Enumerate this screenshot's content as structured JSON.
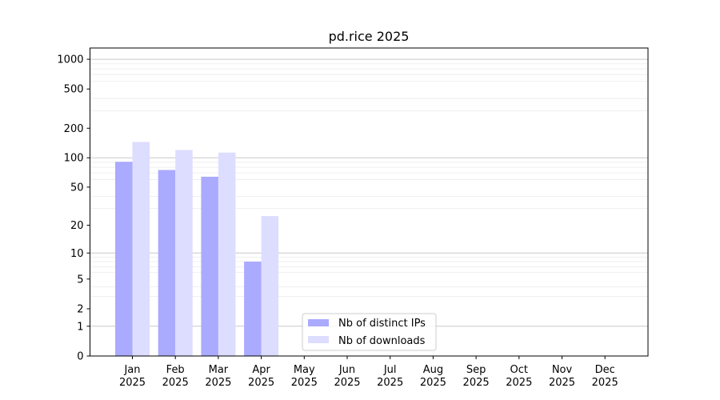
{
  "chart_data": {
    "type": "bar",
    "title": "pd.rice 2025",
    "xlabel": "",
    "ylabel": "",
    "categories": [
      [
        "Jan",
        "2025"
      ],
      [
        "Feb",
        "2025"
      ],
      [
        "Mar",
        "2025"
      ],
      [
        "Apr",
        "2025"
      ],
      [
        "May",
        "2025"
      ],
      [
        "Jun",
        "2025"
      ],
      [
        "Jul",
        "2025"
      ],
      [
        "Aug",
        "2025"
      ],
      [
        "Sep",
        "2025"
      ],
      [
        "Oct",
        "2025"
      ],
      [
        "Nov",
        "2025"
      ],
      [
        "Dec",
        "2025"
      ]
    ],
    "series": [
      {
        "name": "Nb of distinct IPs",
        "color": "#aaaaff",
        "values": [
          91,
          75,
          64,
          8,
          0,
          0,
          0,
          0,
          0,
          0,
          0,
          0
        ]
      },
      {
        "name": "Nb of downloads",
        "color": "#ddddff",
        "values": [
          145,
          120,
          113,
          25,
          0,
          0,
          0,
          0,
          0,
          0,
          0,
          0
        ]
      }
    ],
    "y_scale": "symlog",
    "ylim": [
      0,
      1300
    ],
    "y_ticks": [
      0,
      1,
      2,
      5,
      10,
      20,
      50,
      100,
      200,
      500,
      1000
    ],
    "grid": "horizontal",
    "legend_position": "lower-center"
  }
}
